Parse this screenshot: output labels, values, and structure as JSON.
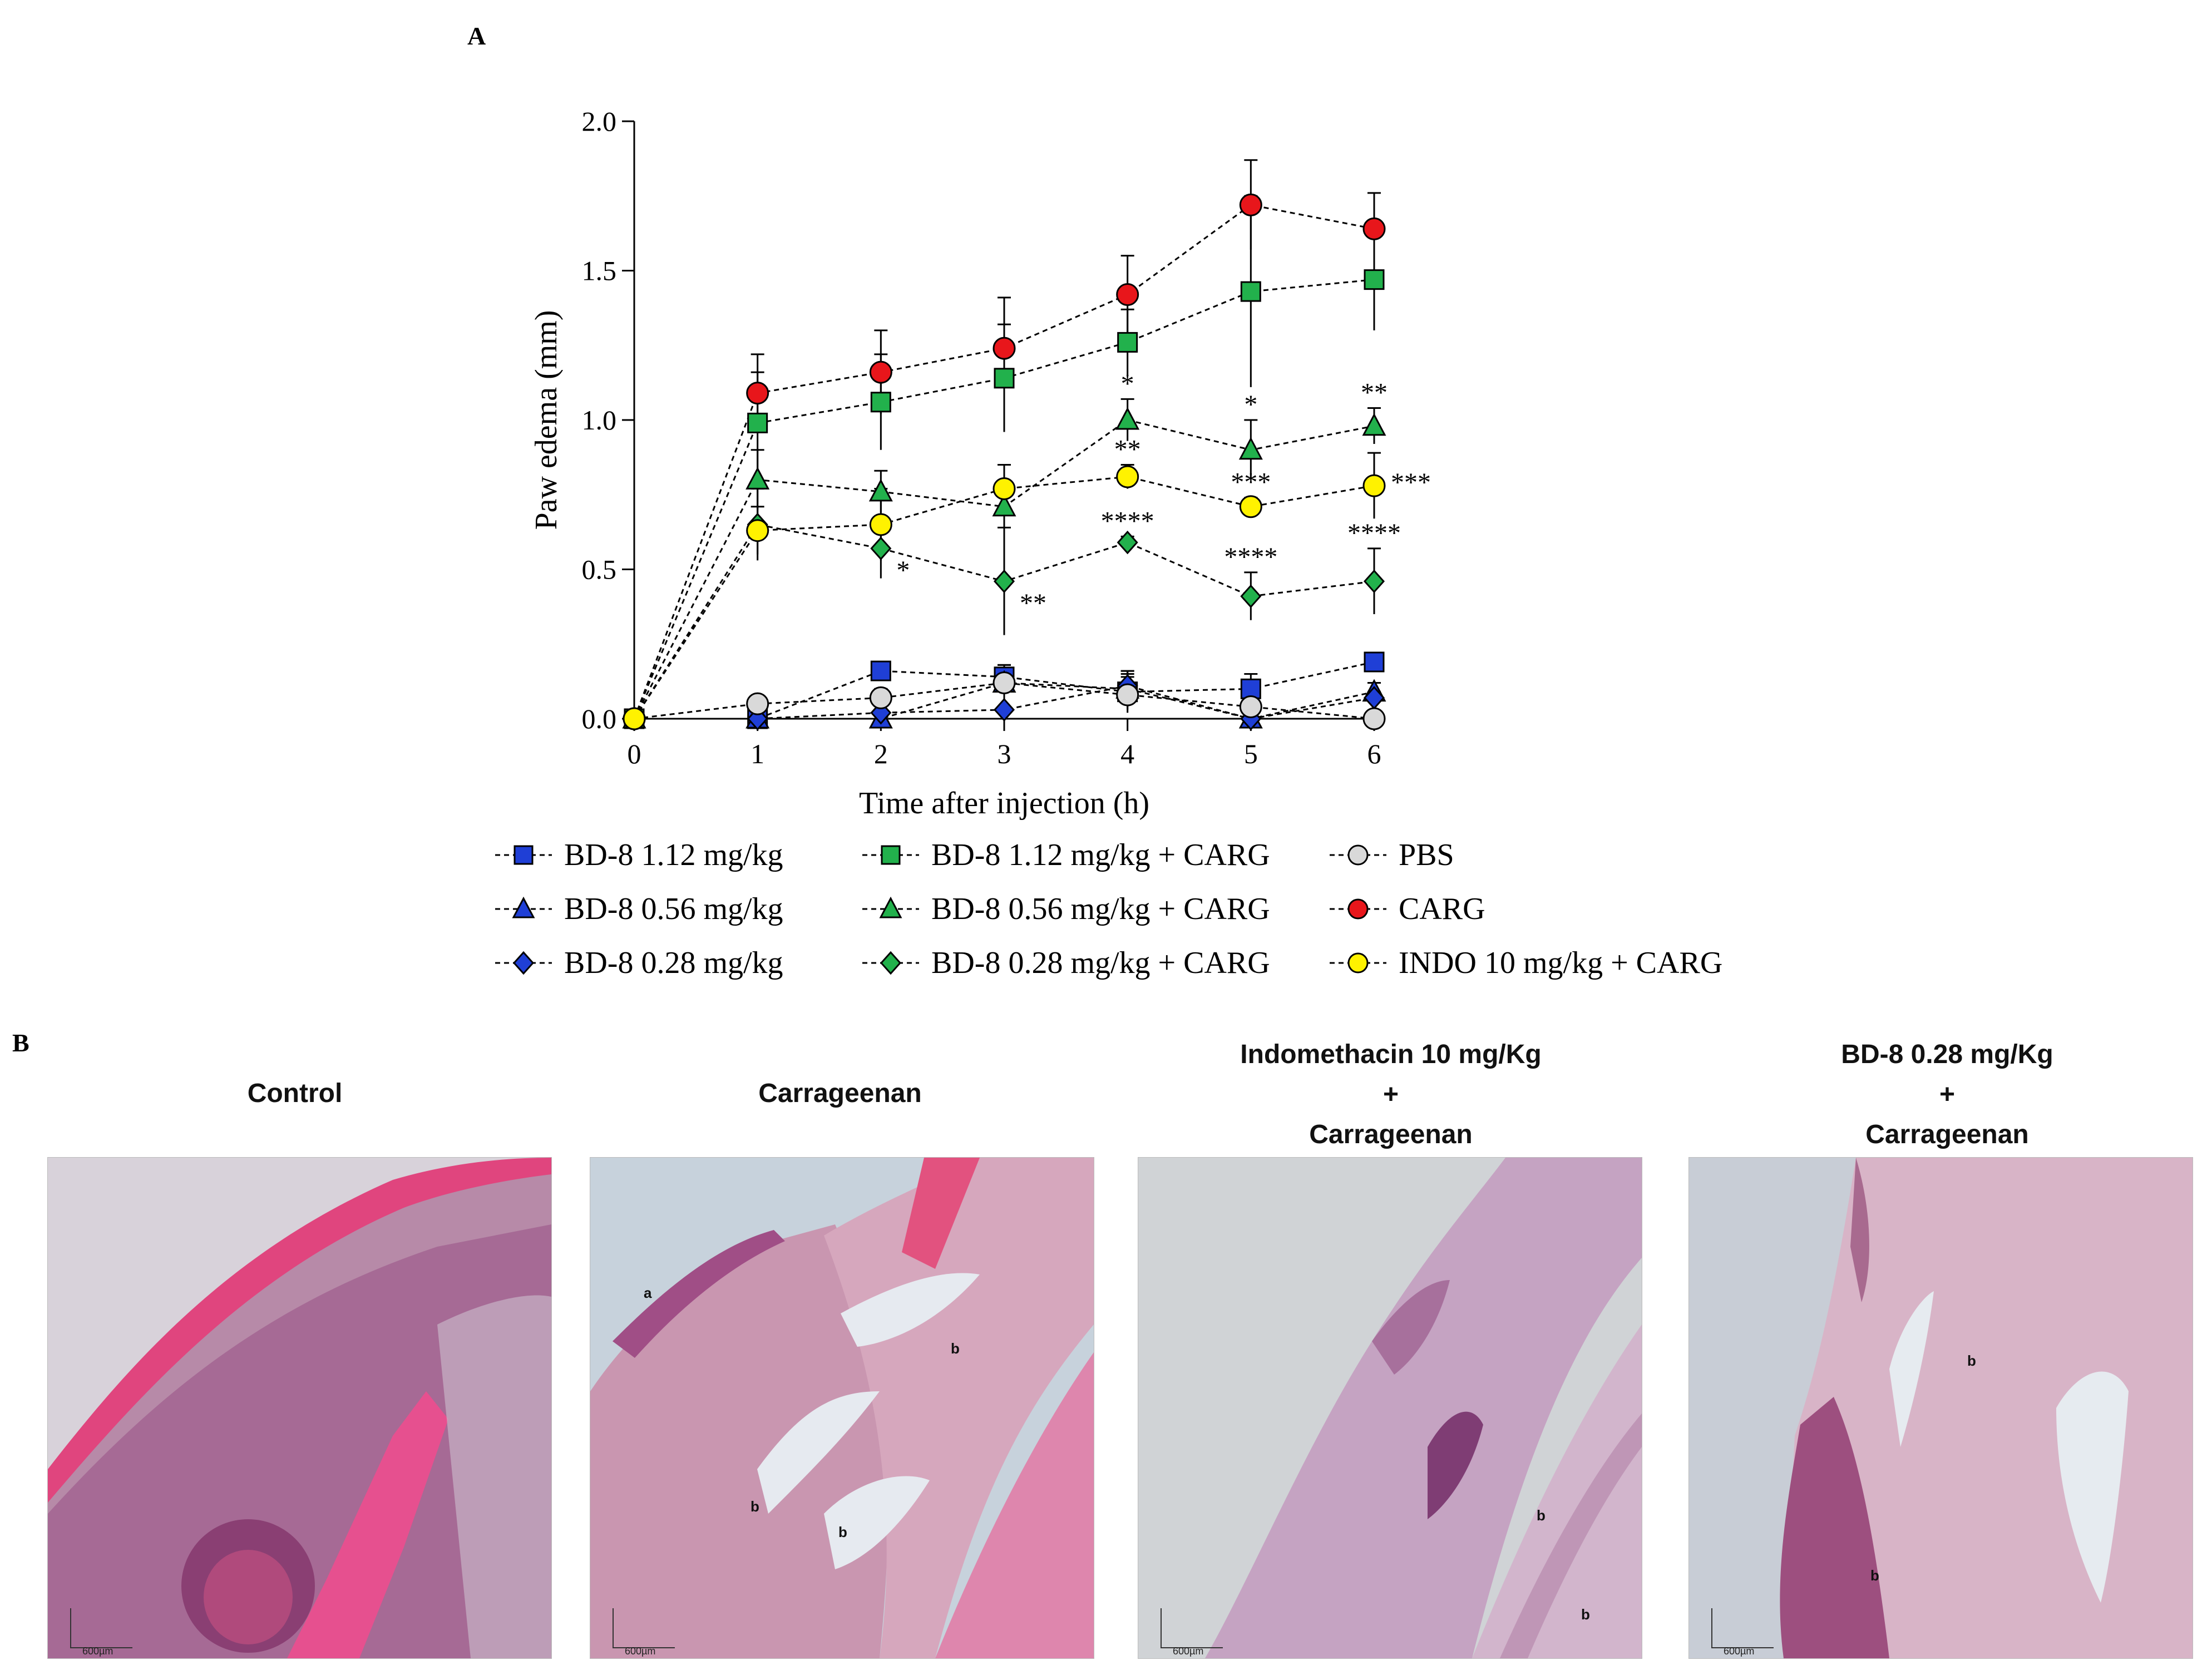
{
  "panel_a_letter": "A",
  "panel_b_letter": "B",
  "chart_data": {
    "type": "line",
    "xlabel": "Time after injection (h)",
    "ylabel": "Paw edema (mm)",
    "x": [
      0,
      1,
      2,
      3,
      4,
      5,
      6
    ],
    "xlim": [
      0,
      6
    ],
    "ylim": [
      0,
      2.0
    ],
    "xticks": [
      "0",
      "1",
      "2",
      "3",
      "4",
      "5",
      "6"
    ],
    "yticks": [
      "0.0",
      "0.5",
      "1.0",
      "1.5",
      "2.0"
    ],
    "legend_position": "bottom",
    "series": [
      {
        "name": "BD-8 1.12 mg/kg",
        "marker": "square",
        "color": "#1f3fd6",
        "values": [
          0,
          0.0,
          0.16,
          0.14,
          0.09,
          0.1,
          0.19
        ],
        "err": [
          0,
          0,
          0.03,
          0.04,
          0.06,
          0.05,
          0.02
        ],
        "stars": [
          "",
          "",
          "",
          "",
          "",
          "",
          ""
        ]
      },
      {
        "name": "BD-8 0.56 mg/kg",
        "marker": "triangle",
        "color": "#1f3fd6",
        "values": [
          0,
          0.0,
          0.0,
          0.12,
          0.1,
          0.0,
          0.09
        ],
        "err": [
          0,
          0,
          0,
          0.05,
          0.06,
          0,
          0.03
        ],
        "stars": [
          "",
          "",
          "",
          "",
          "",
          "",
          ""
        ]
      },
      {
        "name": "BD-8 0.28 mg/kg",
        "marker": "diamond",
        "color": "#1f3fd6",
        "values": [
          0,
          0.0,
          0.02,
          0.03,
          0.11,
          0.0,
          0.07
        ],
        "err": [
          0,
          0,
          0,
          0,
          0.05,
          0,
          0.02
        ],
        "stars": [
          "",
          "",
          "",
          "",
          "",
          "",
          ""
        ]
      },
      {
        "name": "BD-8 1.12 mg/kg + CARG",
        "marker": "square",
        "color": "#22b14c",
        "values": [
          0,
          0.99,
          1.06,
          1.14,
          1.26,
          1.43,
          1.47
        ],
        "err": [
          0,
          0.17,
          0.16,
          0.18,
          0.11,
          0.32,
          0.17
        ],
        "stars": [
          "",
          "",
          "",
          "",
          "",
          "",
          ""
        ]
      },
      {
        "name": "BD-8 0.56 mg/kg + CARG",
        "marker": "triangle",
        "color": "#22b14c",
        "values": [
          0,
          0.8,
          0.76,
          0.71,
          1.0,
          0.9,
          0.98
        ],
        "err": [
          0,
          0.1,
          0.07,
          0.08,
          0.07,
          0.1,
          0.06
        ],
        "stars": [
          "",
          "",
          "",
          "",
          "*",
          "*",
          "**"
        ]
      },
      {
        "name": "BD-8 0.28 mg/kg + CARG",
        "marker": "diamond",
        "color": "#22b14c",
        "values": [
          0,
          0.65,
          0.57,
          0.46,
          0.59,
          0.41,
          0.46
        ],
        "err": [
          0,
          0.12,
          0.1,
          0.18,
          0.02,
          0.08,
          0.11
        ],
        "stars": [
          "",
          "",
          "*",
          "**",
          "****",
          "****",
          "****"
        ]
      },
      {
        "name": "PBS",
        "marker": "circle",
        "color": "#d9d9d9",
        "values": [
          0,
          0.05,
          0.07,
          0.12,
          0.08,
          0.04,
          0.0
        ],
        "err": [
          0,
          0,
          0.03,
          0.06,
          0.06,
          0.04,
          0
        ],
        "stars": [
          "",
          "",
          "",
          "",
          "",
          "",
          ""
        ]
      },
      {
        "name": "CARG",
        "marker": "circle",
        "color": "#e8161b",
        "values": [
          0,
          1.09,
          1.16,
          1.24,
          1.42,
          1.72,
          1.64
        ],
        "err": [
          0,
          0.13,
          0.14,
          0.17,
          0.13,
          0.15,
          0.12
        ],
        "stars": [
          "",
          "",
          "",
          "",
          "",
          "",
          ""
        ]
      },
      {
        "name": "INDO 10 mg/kg + CARG",
        "marker": "circle",
        "color": "#fff200",
        "values": [
          0,
          0.63,
          0.65,
          0.77,
          0.81,
          0.71,
          0.78
        ],
        "err": [
          0,
          0.08,
          0.12,
          0.08,
          0.04,
          0.03,
          0.11
        ],
        "stars": [
          "",
          "",
          "",
          "",
          "**",
          "***",
          "***"
        ]
      }
    ]
  },
  "panel_b": {
    "images": [
      {
        "title": "Control",
        "labels": [],
        "scale": "600µm"
      },
      {
        "title": "Carrageenan",
        "labels": [
          "a",
          "b",
          "b",
          "b"
        ],
        "scale": "600µm"
      },
      {
        "title": "Indomethacin 10 mg/Kg\n+\nCarrageenan",
        "labels": [
          "b",
          "b"
        ],
        "scale": "600µm"
      },
      {
        "title": "BD-8 0.28 mg/Kg\n+\nCarrageenan",
        "labels": [
          "b",
          "b"
        ],
        "scale": "600µm"
      }
    ]
  }
}
